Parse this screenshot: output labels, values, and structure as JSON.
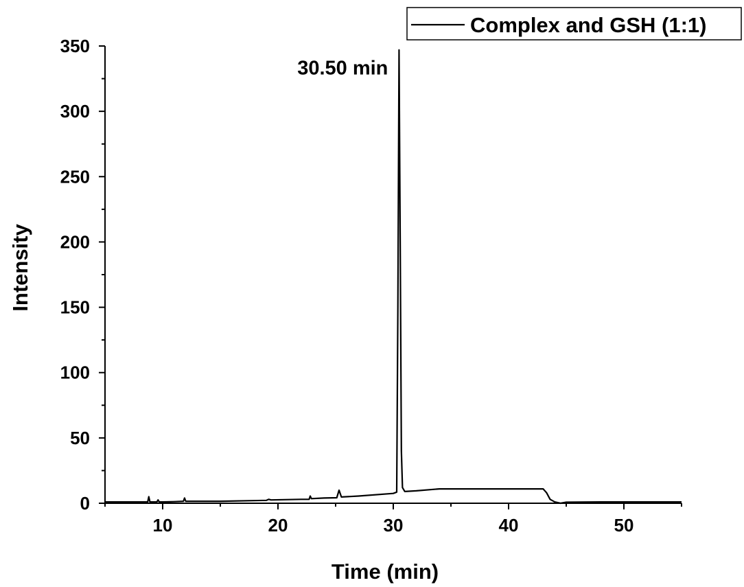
{
  "chart_data": {
    "type": "line",
    "xlabel": "Time (min)",
    "ylabel": "Intensity",
    "xlim": [
      5,
      55
    ],
    "ylim": [
      0,
      350
    ],
    "x_ticks": [
      10,
      20,
      30,
      40,
      50
    ],
    "y_ticks": [
      0,
      50,
      100,
      150,
      200,
      250,
      300,
      350
    ],
    "grid": false,
    "legend": {
      "position": "top-right",
      "entries": [
        "Complex and GSH (1:1)"
      ]
    },
    "annotations": [
      {
        "text": "30.50 min",
        "x": 30.5,
        "y": 347
      }
    ],
    "series": [
      {
        "name": "Complex and GSH (1:1)",
        "color": "#000000",
        "x": [
          5,
          8,
          8.7,
          8.8,
          8.9,
          9.5,
          9.6,
          9.7,
          10,
          11,
          11.8,
          11.9,
          12,
          15,
          19,
          19.2,
          19.4,
          22,
          22.7,
          22.8,
          22.9,
          24,
          25.1,
          25.3,
          25.5,
          27,
          30,
          30.3,
          30.4,
          30.5,
          30.6,
          30.7,
          30.8,
          31,
          32,
          34,
          38,
          42,
          43,
          43.3,
          43.6,
          44,
          44.5,
          45,
          48,
          55
        ],
        "y": [
          1,
          1,
          1,
          5,
          1,
          1,
          2.5,
          1,
          1,
          1.2,
          1.5,
          4,
          1.5,
          1.5,
          2.2,
          3,
          2.5,
          3,
          3,
          5.5,
          3.5,
          4,
          4.2,
          10,
          4.8,
          5.5,
          7.5,
          8.5,
          150,
          347,
          200,
          40,
          12,
          9,
          9.5,
          11,
          11,
          11,
          11,
          8,
          3,
          1,
          0,
          0.8,
          1,
          1
        ]
      }
    ]
  }
}
